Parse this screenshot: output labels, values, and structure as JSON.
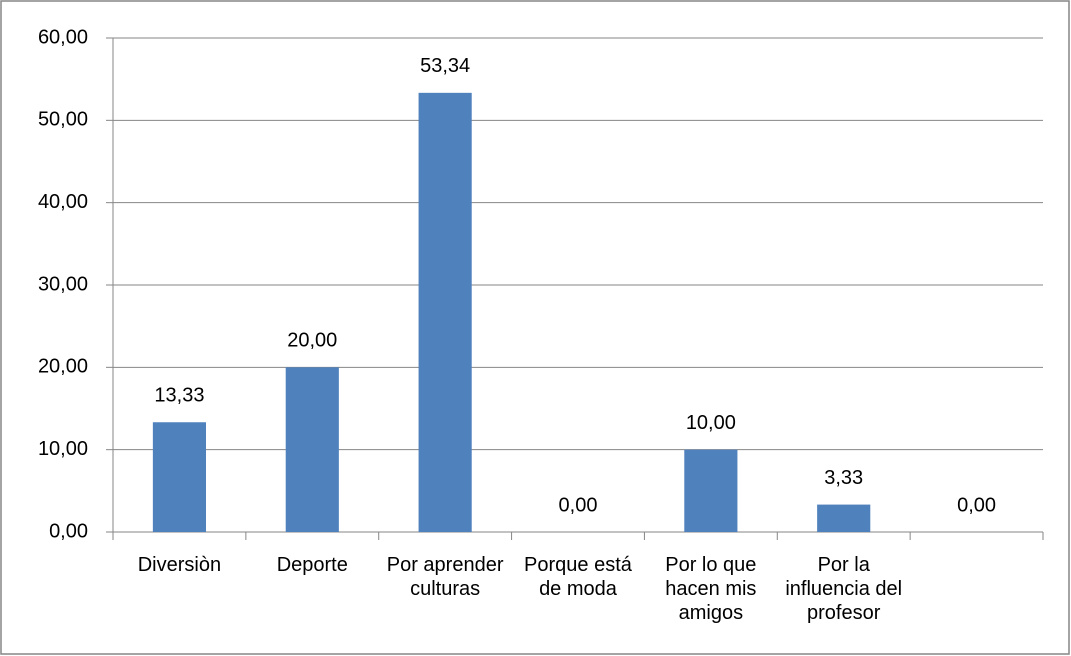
{
  "chart_data": {
    "type": "bar",
    "categories": [
      "Diversiòn",
      "Deporte",
      "Por aprender culturas",
      "Porque está de moda",
      "Por lo que hacen mis amigos",
      "Por la influencia del profesor",
      null
    ],
    "values": [
      13.33,
      20,
      53.34,
      0,
      10,
      3.33,
      0
    ],
    "value_labels": [
      "13,33",
      "20,00",
      "53,34",
      "0,00",
      "10,00",
      "3,33",
      "0,00"
    ],
    "color": "#4f81bd",
    "ylim": [
      0,
      60
    ],
    "yticks": [
      {
        "value": 0,
        "label": "0,00"
      },
      {
        "value": 10,
        "label": "10,00"
      },
      {
        "value": 20,
        "label": "20,00"
      },
      {
        "value": 30,
        "label": "30,00"
      },
      {
        "value": 40,
        "label": "40,00"
      },
      {
        "value": 50,
        "label": "50,00"
      },
      {
        "value": 60,
        "label": "60,00"
      }
    ],
    "grid": true
  }
}
